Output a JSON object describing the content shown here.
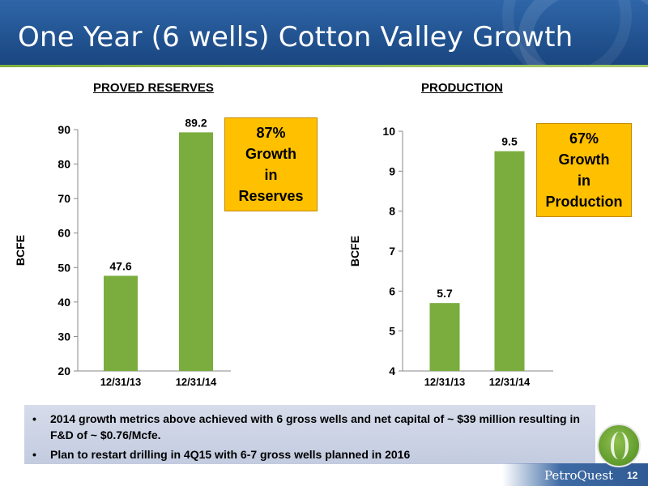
{
  "title": "One Year (6 wells) Cotton Valley Growth",
  "chart_data": [
    {
      "type": "bar",
      "title": "PROVED RESERVES",
      "ylabel": "BCFE",
      "categories": [
        "12/31/13",
        "12/31/14"
      ],
      "values": [
        47.6,
        89.2
      ],
      "data_labels": [
        "47.6",
        "89.2"
      ],
      "ylim": [
        20,
        90
      ],
      "yticks": [
        20,
        30,
        40,
        50,
        60,
        70,
        80,
        90
      ],
      "grid": false,
      "color": "#7aad3e",
      "callout": [
        "87%",
        "Growth",
        "in",
        "Reserves"
      ]
    },
    {
      "type": "bar",
      "title": "PRODUCTION",
      "ylabel": "BCFE",
      "categories": [
        "12/31/13",
        "12/31/14"
      ],
      "values": [
        5.7,
        9.5
      ],
      "data_labels": [
        "5.7",
        "9.5"
      ],
      "ylim": [
        4,
        10
      ],
      "yticks": [
        4,
        5,
        6,
        7,
        8,
        9,
        10
      ],
      "grid": false,
      "color": "#7aad3e",
      "callout": [
        "67%",
        "Growth",
        "in",
        "Production"
      ]
    }
  ],
  "bullets": [
    "2014 growth metrics above achieved with 6 gross wells and net capital of ~ $39 million resulting in F&D of ~ $0.76/Mcfe.",
    "Plan to restart drilling in 4Q15 with 6-7 gross wells planned in 2016"
  ],
  "bullet_symbol": "•",
  "footer": {
    "logo_text": "PetroQuest",
    "page_number": "12"
  },
  "colors": {
    "header": "#1f4f8c",
    "bar": "#7aad3e",
    "callout": "#ffc000",
    "bullet_box": "#c9d0e3"
  }
}
